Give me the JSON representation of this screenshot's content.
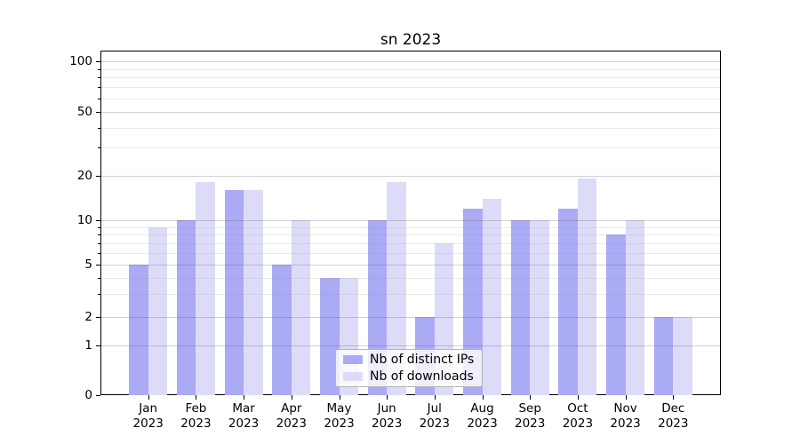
{
  "figure": {
    "background": "#ffffff"
  },
  "chart_data": {
    "type": "bar",
    "title": "sn 2023",
    "categories": [
      "Jan",
      "Feb",
      "Mar",
      "Apr",
      "May",
      "Jun",
      "Jul",
      "Aug",
      "Sep",
      "Oct",
      "Nov",
      "Dec"
    ],
    "year_label": "2023",
    "series": [
      {
        "name": "Nb of distinct IPs",
        "color": "#aaaaf5",
        "values": [
          5,
          10,
          16,
          5,
          4,
          10,
          2,
          12,
          10,
          12,
          8,
          2
        ]
      },
      {
        "name": "Nb of downloads",
        "color": "#dcdcf9",
        "values": [
          9,
          18,
          16,
          10,
          4,
          18,
          7,
          14,
          10,
          19,
          10,
          2
        ]
      }
    ],
    "yscale": "log-like (linear below 1)",
    "ylim": [
      0,
      120
    ],
    "ytick_labels": [
      0,
      1,
      2,
      5,
      10,
      20,
      50,
      100
    ],
    "minor_gridlines": [
      3,
      4,
      6,
      7,
      8,
      9,
      30,
      40,
      60,
      70,
      80,
      90
    ],
    "grid": "on",
    "legend_position": "lower center inside plot"
  },
  "colors": {
    "axis": "#000000",
    "major_grid": "#c6c6c6",
    "minor_grid": "#e9e9e9",
    "title_text": "#000000",
    "tick_text": "#000000",
    "legend_border": "#b3b3b3"
  }
}
